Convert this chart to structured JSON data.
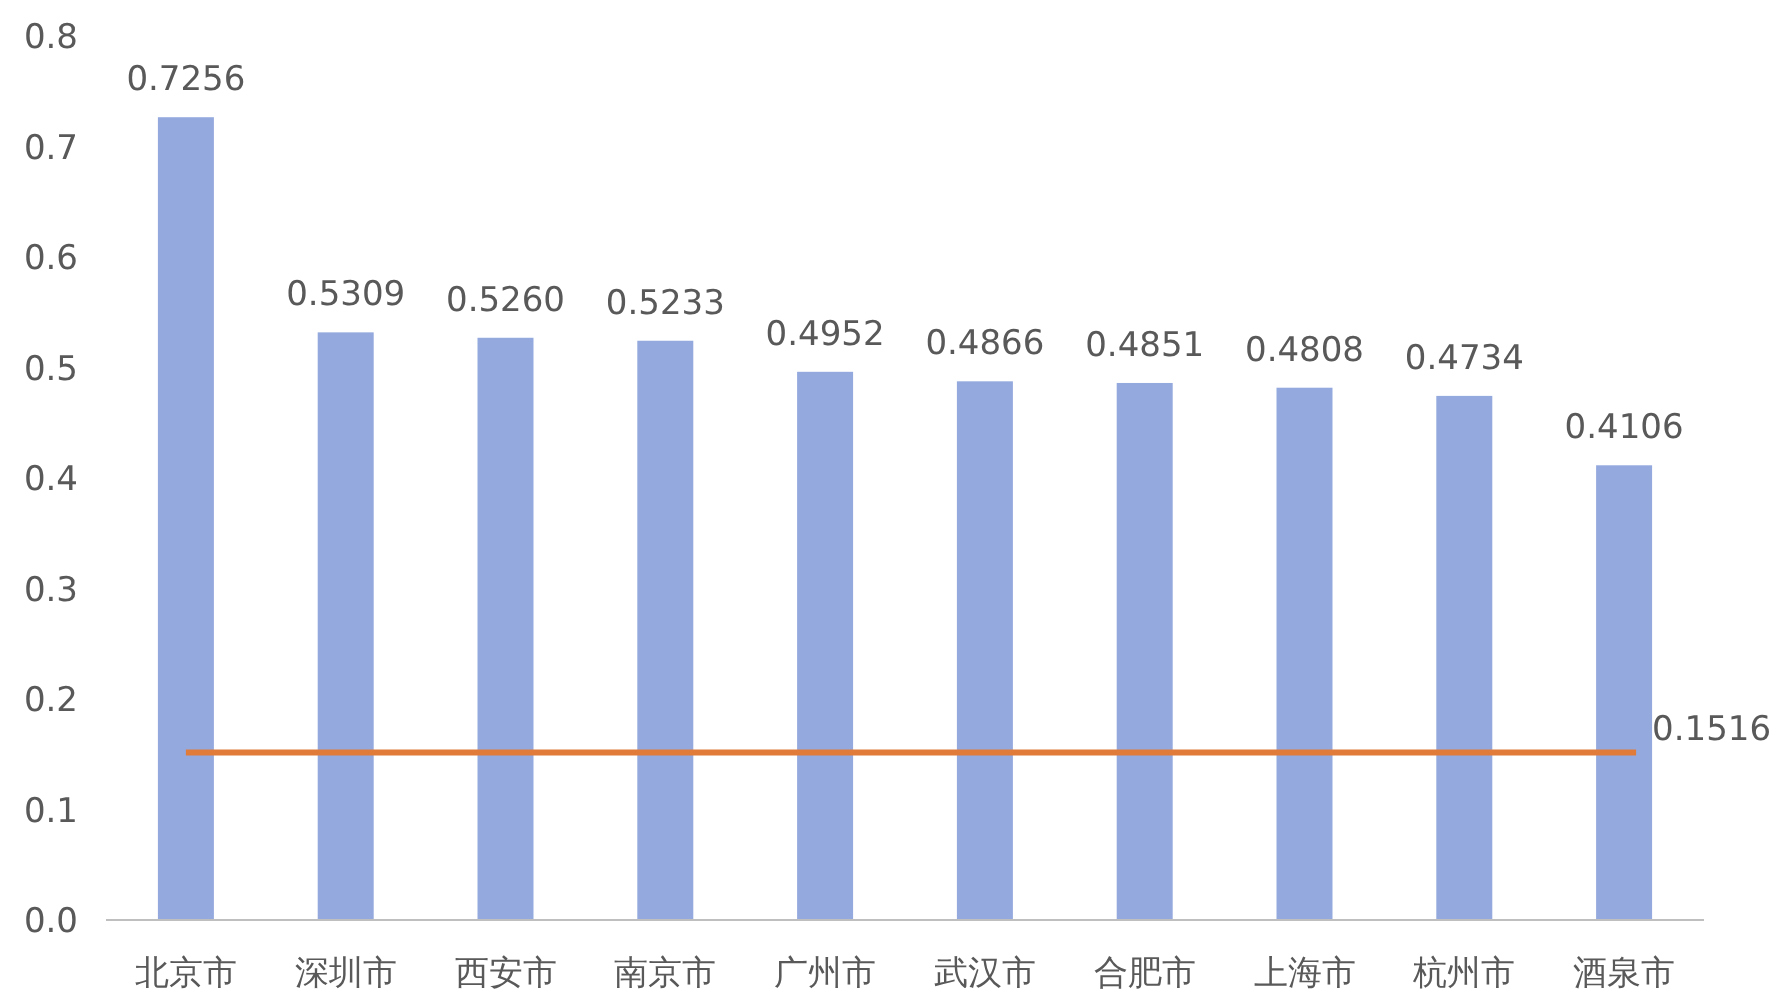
{
  "chart_data": {
    "type": "bar",
    "categories": [
      "北京市",
      "深圳市",
      "西安市",
      "南京市",
      "广州市",
      "武汉市",
      "合肥市",
      "上海市",
      "杭州市",
      "酒泉市"
    ],
    "values": [
      0.7256,
      0.5309,
      0.526,
      0.5233,
      0.4952,
      0.4866,
      0.4851,
      0.4808,
      0.4734,
      0.4106
    ],
    "value_labels": [
      "0.7256",
      "0.5309",
      "0.5260",
      "0.5233",
      "0.4952",
      "0.4866",
      "0.4851",
      "0.4808",
      "0.4734",
      "0.4106"
    ],
    "color": "#94a9de",
    "ylim": [
      0,
      0.8
    ],
    "yticks": [
      {
        "value": 0,
        "label": "0.0"
      },
      0.1,
      0.2,
      0.3,
      0.4,
      0.5,
      0.6,
      0.7,
      0.8
    ],
    "ref_lines": [
      {
        "axis": "y",
        "value": 0.1516,
        "label": "0.1516",
        "color": "#e07b39"
      }
    ],
    "grid": false
  }
}
